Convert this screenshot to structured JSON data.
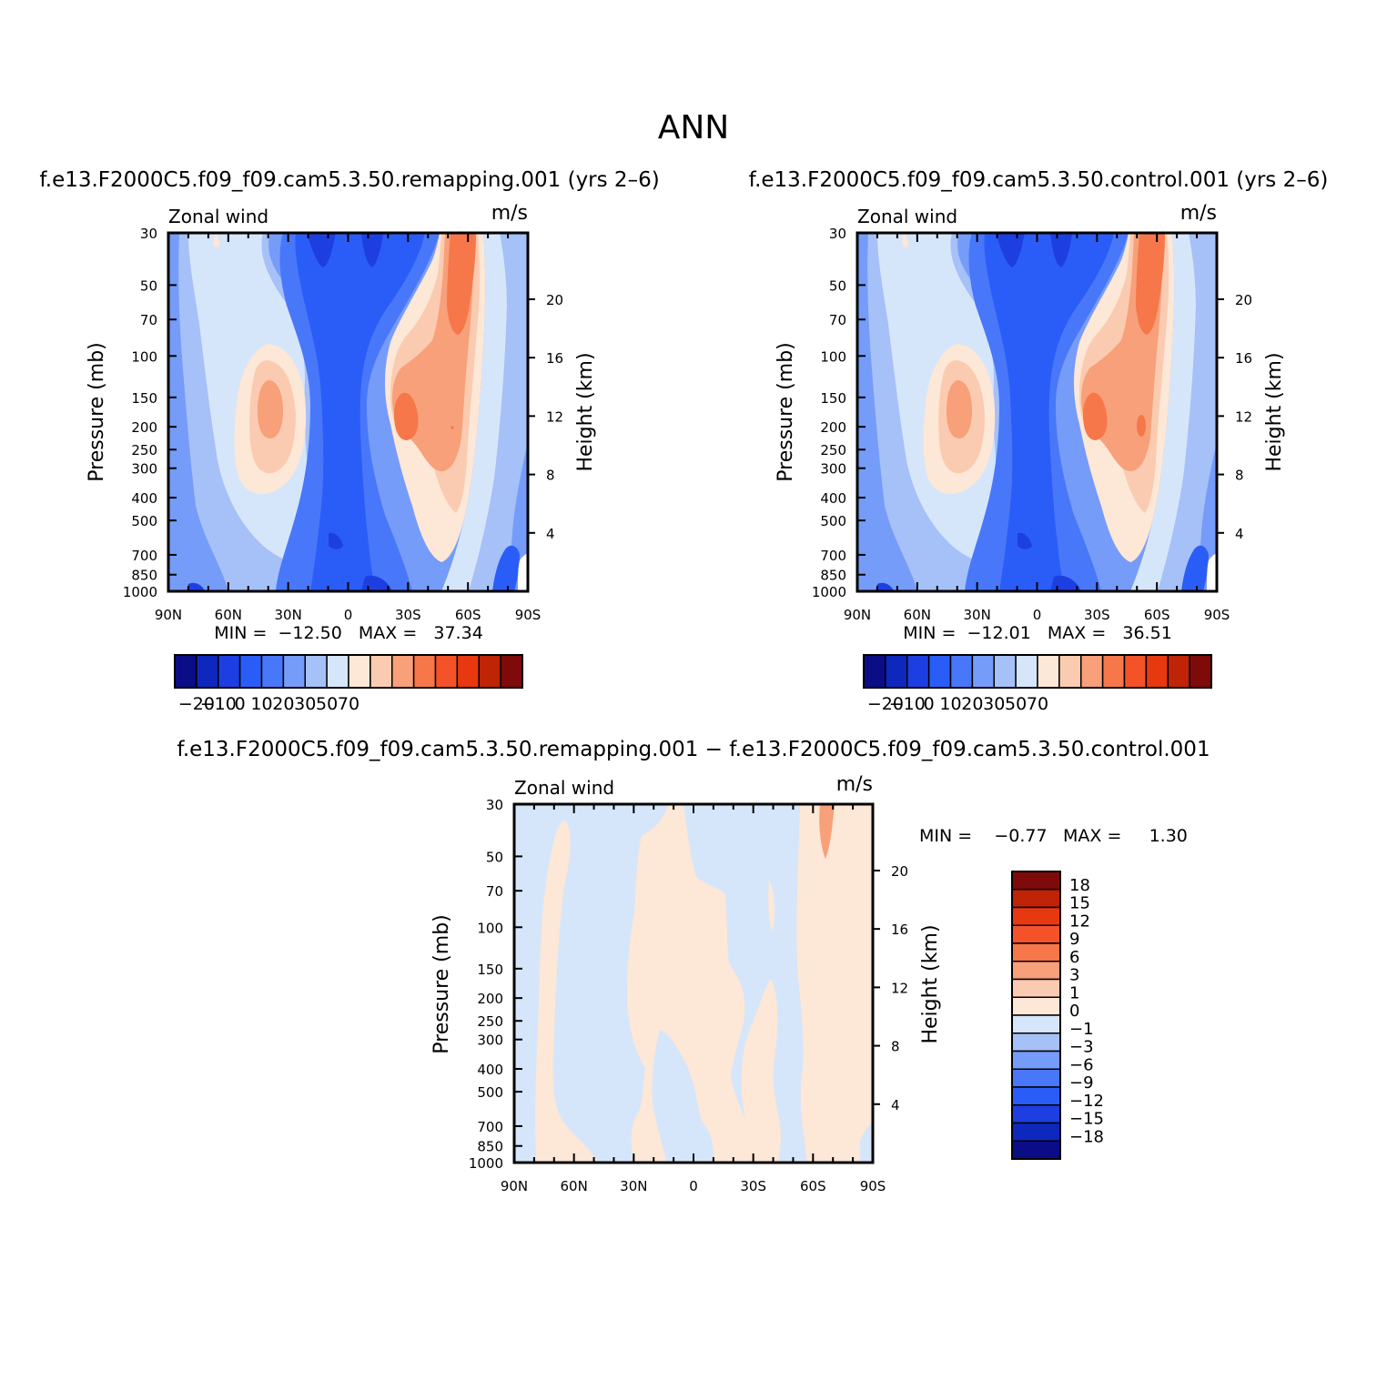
{
  "figure": {
    "title": "ANN",
    "panels": [
      {
        "id": "remapping",
        "heading": "f.e13.F2000C5.f09_f09.cam5.3.50.remapping.001  (yrs 2–6)",
        "variable": "Zonal wind",
        "units": "m/s",
        "ylabel": "Pressure  (mb)",
        "y2label": "Height  (km)",
        "stats": "MIN =  −12.50   MAX =   37.34"
      },
      {
        "id": "control",
        "heading": "f.e13.F2000C5.f09_f09.cam5.3.50.control.001  (yrs 2–6)",
        "variable": "Zonal wind",
        "units": "m/s",
        "ylabel": "Pressure  (mb)",
        "y2label": "Height  (km)",
        "stats": "MIN =  −12.01   MAX =   36.51"
      },
      {
        "id": "difference",
        "heading": "f.e13.F2000C5.f09_f09.cam5.3.50.remapping.001  −  f.e13.F2000C5.f09_f09.cam5.3.50.control.001",
        "variable": "Zonal wind",
        "units": "m/s",
        "ylabel": "Pressure  (mb)",
        "y2label": "Height  (km)",
        "stats_min": "MIN =    −0.77",
        "stats_max": "MAX =     1.30"
      }
    ]
  },
  "chart_data": [
    {
      "type": "heatmap",
      "subtype": "filled-contour",
      "title": "f.e13.F2000C5.f09_f09.cam5.3.50.remapping.001  (yrs 2–6)",
      "x_ticks": [
        "90N",
        "60N",
        "30N",
        "0",
        "30S",
        "60S",
        "90S"
      ],
      "x_tick_values": [
        90,
        60,
        30,
        0,
        -30,
        -60,
        -90
      ],
      "y_ticks": [
        "30",
        "50",
        "70",
        "100",
        "150",
        "200",
        "250",
        "300",
        "400",
        "500",
        "700",
        "850",
        "1000"
      ],
      "y_tick_values": [
        30,
        50,
        70,
        100,
        150,
        200,
        250,
        300,
        400,
        500,
        700,
        850,
        1000
      ],
      "y_scale": "log",
      "y_reversed": true,
      "y2_ticks": [
        "4",
        "8",
        "12",
        "16",
        "20"
      ],
      "min": -12.5,
      "max": 37.34,
      "colorbar": {
        "orientation": "horizontal",
        "labels": [
          "−20",
          "−10",
          "0",
          "10",
          "20",
          "30",
          "50",
          "70"
        ],
        "colors": [
          "#0a0d85",
          "#0e27bd",
          "#1d3fe2",
          "#2a5df8",
          "#4878f9",
          "#769cf9",
          "#a6c0f8",
          "#d6e6fa",
          "#fde7d6",
          "#fbcbb1",
          "#f7a07a",
          "#f6774a",
          "#f4532a",
          "#e8380f",
          "#bf2407",
          "#7e0b0a"
        ]
      }
    },
    {
      "type": "heatmap",
      "subtype": "filled-contour",
      "title": "f.e13.F2000C5.f09_f09.cam5.3.50.control.001  (yrs 2–6)",
      "x_ticks": [
        "90N",
        "60N",
        "30N",
        "0",
        "30S",
        "60S",
        "90S"
      ],
      "x_tick_values": [
        90,
        60,
        30,
        0,
        -30,
        -60,
        -90
      ],
      "y_ticks": [
        "30",
        "50",
        "70",
        "100",
        "150",
        "200",
        "250",
        "300",
        "400",
        "500",
        "700",
        "850",
        "1000"
      ],
      "y_tick_values": [
        30,
        50,
        70,
        100,
        150,
        200,
        250,
        300,
        400,
        500,
        700,
        850,
        1000
      ],
      "y_scale": "log",
      "y_reversed": true,
      "y2_ticks": [
        "4",
        "8",
        "12",
        "16",
        "20"
      ],
      "min": -12.01,
      "max": 36.51,
      "colorbar": {
        "orientation": "horizontal",
        "labels": [
          "−20",
          "−10",
          "0",
          "10",
          "20",
          "30",
          "50",
          "70"
        ],
        "colors": [
          "#0a0d85",
          "#0e27bd",
          "#1d3fe2",
          "#2a5df8",
          "#4878f9",
          "#769cf9",
          "#a6c0f8",
          "#d6e6fa",
          "#fde7d6",
          "#fbcbb1",
          "#f7a07a",
          "#f6774a",
          "#f4532a",
          "#e8380f",
          "#bf2407",
          "#7e0b0a"
        ]
      }
    },
    {
      "type": "heatmap",
      "subtype": "filled-contour",
      "title": "f.e13.F2000C5.f09_f09.cam5.3.50.remapping.001  −  f.e13.F2000C5.f09_f09.cam5.3.50.control.001",
      "x_ticks": [
        "90N",
        "60N",
        "30N",
        "0",
        "30S",
        "60S",
        "90S"
      ],
      "x_tick_values": [
        90,
        60,
        30,
        0,
        -30,
        -60,
        -90
      ],
      "y_ticks": [
        "30",
        "50",
        "70",
        "100",
        "150",
        "200",
        "250",
        "300",
        "400",
        "500",
        "700",
        "850",
        "1000"
      ],
      "y_tick_values": [
        30,
        50,
        70,
        100,
        150,
        200,
        250,
        300,
        400,
        500,
        700,
        850,
        1000
      ],
      "y_scale": "log",
      "y_reversed": true,
      "y2_ticks": [
        "4",
        "8",
        "12",
        "16",
        "20"
      ],
      "min": -0.77,
      "max": 1.3,
      "colorbar": {
        "orientation": "vertical",
        "labels": [
          "18",
          "15",
          "12",
          "9",
          "6",
          "3",
          "1",
          "0",
          "−1",
          "−3",
          "−6",
          "−9",
          "−12",
          "−15",
          "−18"
        ],
        "colors": [
          "#7e0b0a",
          "#bf2407",
          "#e8380f",
          "#f4532a",
          "#f6774a",
          "#f7a07a",
          "#fbcbb1",
          "#fde7d6",
          "#d6e6fa",
          "#a6c0f8",
          "#769cf9",
          "#4878f9",
          "#2a5df8",
          "#1d3fe2",
          "#0e27bd",
          "#0a0d85"
        ]
      }
    }
  ]
}
